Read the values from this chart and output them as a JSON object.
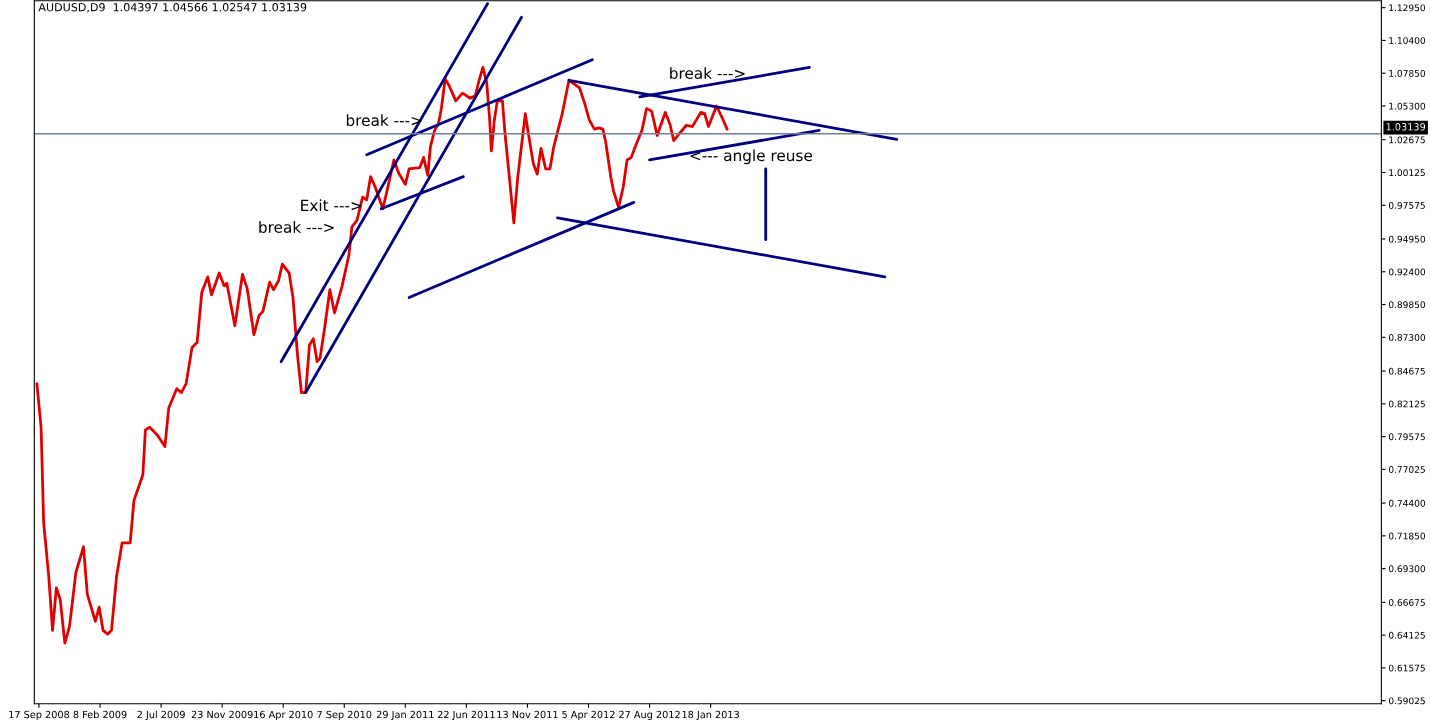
{
  "chart_data": {
    "type": "line",
    "title": "AUDUSD,D9  1.04397 1.04566 1.02547 1.03139",
    "xlim": [
      "2008-09-06",
      "2017-05-19"
    ],
    "ylim": [
      0.5879,
      1.1349
    ],
    "xticks": [
      {
        "value": "2008-09-17",
        "label": "17 Sep 2008"
      },
      {
        "value": "2009-02-08",
        "label": "8 Feb 2009"
      },
      {
        "value": "2009-07-02",
        "label": "2 Jul 2009"
      },
      {
        "value": "2009-11-23",
        "label": "23 Nov 2009"
      },
      {
        "value": "2010-04-16",
        "label": "16 Apr 2010"
      },
      {
        "value": "2010-09-07",
        "label": "7 Sep 2010"
      },
      {
        "value": "2011-01-29",
        "label": "29 Jan 2011"
      },
      {
        "value": "2011-06-22",
        "label": "22 Jun 2011"
      },
      {
        "value": "2011-11-13",
        "label": "13 Nov 2011"
      },
      {
        "value": "2012-04-05",
        "label": "5 Apr 2012"
      },
      {
        "value": "2012-08-27",
        "label": "27 Aug 2012"
      },
      {
        "value": "2013-01-18",
        "label": "18 Jan 2013"
      }
    ],
    "yticks": [
      {
        "value": 1.1295,
        "label": "1.12950"
      },
      {
        "value": 1.104,
        "label": "1.10400"
      },
      {
        "value": 1.0785,
        "label": "1.07850"
      },
      {
        "value": 1.053,
        "label": "1.05300"
      },
      {
        "value": 1.02675,
        "label": "1.02675"
      },
      {
        "value": 1.00125,
        "label": "1.00125"
      },
      {
        "value": 0.97575,
        "label": "0.97575"
      },
      {
        "value": 0.9495,
        "label": "0.94950"
      },
      {
        "value": 0.924,
        "label": "0.92400"
      },
      {
        "value": 0.8985,
        "label": "0.89850"
      },
      {
        "value": 0.873,
        "label": "0.87300"
      },
      {
        "value": 0.84675,
        "label": "0.84675"
      },
      {
        "value": 0.82125,
        "label": "0.82125"
      },
      {
        "value": 0.79575,
        "label": "0.79575"
      },
      {
        "value": 0.77025,
        "label": "0.77025"
      },
      {
        "value": 0.744,
        "label": "0.74400"
      },
      {
        "value": 0.7185,
        "label": "0.71850"
      },
      {
        "value": 0.693,
        "label": "0.69300"
      },
      {
        "value": 0.66675,
        "label": "0.66675"
      },
      {
        "value": 0.64125,
        "label": "0.64125"
      },
      {
        "value": 0.61575,
        "label": "0.61575"
      },
      {
        "value": 0.59025,
        "label": "0.59025"
      }
    ],
    "grid": false,
    "legend": false,
    "ref_lines": [
      {
        "axis": "y",
        "value": 1.03139,
        "label": "1.03139",
        "color": "#708090"
      }
    ],
    "series": [
      {
        "color": "#e00000",
        "x": [
          "2008-09-12",
          "2008-09-22",
          "2008-09-28",
          "2008-10-10",
          "2008-10-19",
          "2008-10-28",
          "2008-11-06",
          "2008-11-17",
          "2008-11-28",
          "2008-12-13",
          "2008-12-31",
          "2009-01-09",
          "2009-01-28",
          "2009-02-06",
          "2009-02-15",
          "2009-02-26",
          "2009-03-07",
          "2009-03-19",
          "2009-04-01",
          "2009-04-20",
          "2009-04-29",
          "2009-05-20",
          "2009-05-26",
          "2009-06-05",
          "2009-06-23",
          "2009-07-11",
          "2009-07-20",
          "2009-08-08",
          "2009-08-19",
          "2009-08-30",
          "2009-09-13",
          "2009-09-25",
          "2009-10-06",
          "2009-10-20",
          "2009-10-29",
          "2009-11-16",
          "2009-11-28",
          "2009-12-04",
          "2009-12-23",
          "2010-01-10",
          "2010-01-21",
          "2010-02-06",
          "2010-02-18",
          "2010-02-27",
          "2010-03-15",
          "2010-03-24",
          "2010-04-05",
          "2010-04-14",
          "2010-04-30",
          "2010-05-09",
          "2010-05-20",
          "2010-05-29",
          "2010-06-08",
          "2010-06-17",
          "2010-06-26",
          "2010-07-05",
          "2010-07-12",
          "2010-07-23",
          "2010-08-04",
          "2010-08-15",
          "2010-09-02",
          "2010-09-18",
          "2010-09-25",
          "2010-10-07",
          "2010-10-20",
          "2010-10-30",
          "2010-11-08",
          "2010-11-19",
          "2010-12-07",
          "2010-12-19",
          "2011-01-02",
          "2011-01-13",
          "2011-01-29",
          "2011-02-07",
          "2011-03-04",
          "2011-03-13",
          "2011-03-23",
          "2011-03-29",
          "2011-04-08",
          "2011-04-17",
          "2011-04-24",
          "2011-05-03",
          "2011-05-12",
          "2011-05-28",
          "2011-06-13",
          "2011-07-01",
          "2011-07-13",
          "2011-07-22",
          "2011-07-31",
          "2011-08-09",
          "2011-08-16",
          "2011-08-20",
          "2011-08-27",
          "2011-09-03",
          "2011-09-15",
          "2011-09-21",
          "2011-10-12",
          "2011-10-21",
          "2011-11-08",
          "2011-11-15",
          "2011-11-27",
          "2011-12-06",
          "2011-12-15",
          "2011-12-26",
          "2012-01-05",
          "2012-01-14",
          "2012-02-03",
          "2012-02-19",
          "2012-03-15",
          "2012-03-27",
          "2012-04-07",
          "2012-04-19",
          "2012-04-30",
          "2012-05-09",
          "2012-05-16",
          "2012-05-28",
          "2012-06-03",
          "2012-06-15",
          "2012-06-26",
          "2012-07-05",
          "2012-07-15",
          "2012-07-24",
          "2012-08-09",
          "2012-08-20",
          "2012-09-01",
          "2012-09-14",
          "2012-10-03",
          "2012-10-14",
          "2012-10-23",
          "2012-11-04",
          "2012-11-22",
          "2012-12-06",
          "2012-12-26",
          "2013-01-04",
          "2013-01-13",
          "2013-02-01",
          "2013-02-14",
          "2013-02-26"
        ],
        "values": [
          0.837,
          0.803,
          0.729,
          0.687,
          0.645,
          0.678,
          0.669,
          0.635,
          0.648,
          0.69,
          0.71,
          0.673,
          0.652,
          0.663,
          0.645,
          0.642,
          0.645,
          0.687,
          0.713,
          0.713,
          0.746,
          0.766,
          0.801,
          0.803,
          0.797,
          0.788,
          0.818,
          0.833,
          0.83,
          0.837,
          0.865,
          0.869,
          0.908,
          0.92,
          0.906,
          0.923,
          0.913,
          0.915,
          0.882,
          0.922,
          0.911,
          0.875,
          0.89,
          0.893,
          0.916,
          0.91,
          0.917,
          0.93,
          0.923,
          0.904,
          0.858,
          0.83,
          0.83,
          0.867,
          0.872,
          0.854,
          0.857,
          0.881,
          0.91,
          0.892,
          0.913,
          0.937,
          0.959,
          0.964,
          0.982,
          0.98,
          0.998,
          0.99,
          0.973,
          0.99,
          1.011,
          1.001,
          0.992,
          1.004,
          1.005,
          1.013,
          0.999,
          1.021,
          1.034,
          1.039,
          1.051,
          1.074,
          1.069,
          1.057,
          1.063,
          1.059,
          1.061,
          1.073,
          1.083,
          1.071,
          1.042,
          1.018,
          1.042,
          1.057,
          1.057,
          1.032,
          0.962,
          0.997,
          1.047,
          1.032,
          1.008,
          1.0,
          1.02,
          1.004,
          1.004,
          1.021,
          1.047,
          1.073,
          1.067,
          1.055,
          1.042,
          1.035,
          1.036,
          1.035,
          1.024,
          0.997,
          0.987,
          0.974,
          0.99,
          1.011,
          1.013,
          1.021,
          1.034,
          1.051,
          1.049,
          1.03,
          1.048,
          1.039,
          1.026,
          1.031,
          1.038,
          1.037,
          1.048,
          1.047,
          1.037,
          1.053,
          1.044,
          1.035
        ]
      },
      {
        "color": "#000080",
        "x": [
          "2010-04-11",
          "2011-08-11"
        ],
        "values": [
          0.854,
          1.1326
        ]
      },
      {
        "color": "#000080",
        "x": [
          "2010-06-08",
          "2011-10-30"
        ],
        "values": [
          0.83,
          1.122
        ]
      },
      {
        "color": "#000080",
        "x": [
          "2010-10-30",
          "2012-04-14"
        ],
        "values": [
          1.015,
          1.089
        ]
      },
      {
        "color": "#000080",
        "x": [
          "2010-12-03",
          "2011-06-15"
        ],
        "values": [
          0.973,
          0.998
        ]
      },
      {
        "color": "#000080",
        "x": [
          "2011-02-07",
          "2012-07-21"
        ],
        "values": [
          0.904,
          0.978
        ]
      },
      {
        "color": "#000080",
        "x": [
          "2012-02-19",
          "2014-04-02"
        ],
        "values": [
          1.073,
          1.027
        ]
      },
      {
        "color": "#000080",
        "x": [
          "2012-08-04",
          "2013-09-08"
        ],
        "values": [
          1.06,
          1.083
        ]
      },
      {
        "color": "#000080",
        "x": [
          "2012-08-27",
          "2013-10-01"
        ],
        "values": [
          1.011,
          1.034
        ]
      },
      {
        "color": "#000080",
        "x": [
          "2012-01-23",
          "2014-03-05"
        ],
        "values": [
          0.966,
          0.92
        ]
      },
      {
        "color": "#000080",
        "x": [
          "2013-05-28",
          "2013-05-28"
        ],
        "values": [
          1.004,
          0.949
        ]
      }
    ],
    "annotations": [
      "break --->",
      "Exit --->",
      "break --->",
      "break --->",
      "<--- angle reuse"
    ]
  }
}
